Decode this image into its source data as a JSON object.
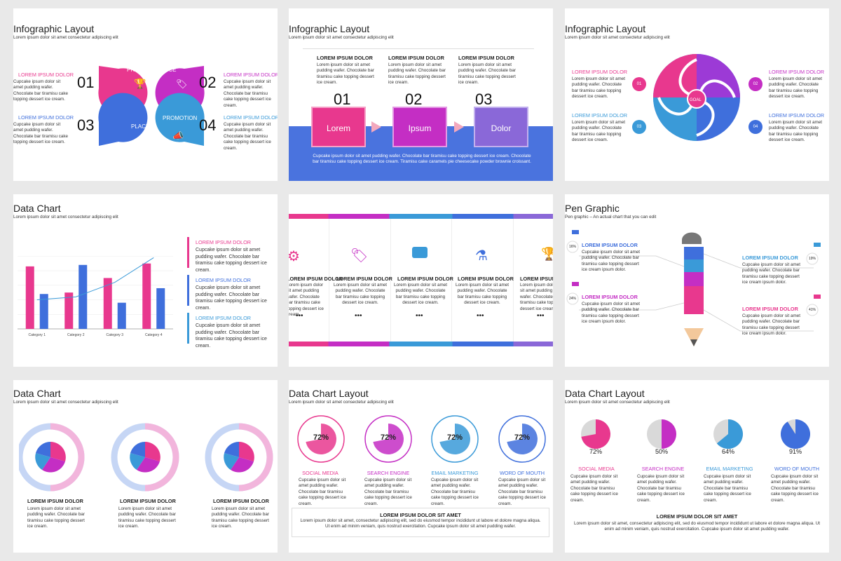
{
  "colors": {
    "pink": "#e8388e",
    "magenta": "#c42ec4",
    "blue": "#3f6fdc",
    "sky": "#3a9ad8",
    "purple": "#7d6bd6"
  },
  "s1": {
    "title": "Infographic Layout",
    "subtitle": "Lorem ipsum dolor sit amet consectetur adipiscing elit",
    "petals": [
      "PRODUCT",
      "PRICE",
      "PLACE",
      "PROMOTION"
    ],
    "numbers": [
      "01",
      "02",
      "03",
      "04"
    ],
    "items": [
      {
        "head": "LOREM IPSUM DOLOR",
        "body": "Cupcake ipsum dolor sit amet pudding wafer. Chocolate bar tiramisu cake topping dessert ice cream."
      },
      {
        "head": "LOREM IPSUM DOLOR",
        "body": "Cupcake ipsum dolor sit amet pudding wafer. Chocolate bar tiramisu cake topping dessert ice cream."
      },
      {
        "head": "LOREM IPSUM DOLOR",
        "body": "Cupcake ipsum dolor sit amet pudding wafer. Chocolate bar tiramisu cake topping dessert ice cream."
      },
      {
        "head": "LOREM IPSUM DOLOR",
        "body": "Cupcake ipsum dolor sit amet pudding wafer. Chocolate bar tiramisu cake topping dessert ice cream."
      }
    ]
  },
  "s2": {
    "title": "Infographic Layout",
    "subtitle": "Lorem ipsum dolor sit amet consectetur adipiscing elit",
    "cols": [
      {
        "head": "LOREM IPSUM DOLOR",
        "body": "Lorem ipsum dolor sit amet pudding wafer. Chocolate bar tiramisu cake topping dessert ice cream.",
        "num": "01",
        "box": "Lorem"
      },
      {
        "head": "LOREM IPSUM DOLOR",
        "body": "Lorem ipsum dolor sit amet pudding wafer. Chocolate bar tiramisu cake topping dessert ice cream.",
        "num": "02",
        "box": "Ipsum"
      },
      {
        "head": "LOREM IPSUM DOLOR",
        "body": "Lorem ipsum dolor sit amet pudding wafer. Chocolate bar tiramisu cake topping dessert ice cream.",
        "num": "03",
        "box": "Dolor"
      }
    ],
    "footer": "Cupcake ipsum dolor sit amet pudding wafer. Chocolate bar tiramisu cake topping dessert ice cream. Chocolate bar tiramisu cake topping dessert ice cream. Tiramisu cake caramels pie cheesecake powder brownie croissant."
  },
  "s3": {
    "title": "Infographic Layout",
    "subtitle": "Lorem ipsum dolor sit amet consectetur adipiscing elit",
    "goal": "GOAL",
    "items": [
      {
        "num": "01",
        "head": "LOREM IPSUM DOLOR",
        "body": "Lorem ipsum dolor sit amet pudding wafer. Chocolate bar tiramisu cake topping dessert ice cream."
      },
      {
        "num": "02",
        "head": "LOREM IPSUM DOLOR",
        "body": "Lorem ipsum dolor sit amet pudding wafer. Chocolate bar tiramisu cake topping dessert ice cream."
      },
      {
        "num": "03",
        "head": "LOREM IPSUM DOLOR",
        "body": "Lorem ipsum dolor sit amet pudding wafer. Chocolate bar tiramisu cake topping dessert ice cream."
      },
      {
        "num": "04",
        "head": "LOREM IPSUM DOLOR",
        "body": "Lorem ipsum dolor sit amet pudding wafer. Chocolate bar tiramisu cake topping dessert ice cream."
      }
    ]
  },
  "s4": {
    "title": "Data Chart",
    "subtitle": "Lorem ipsum dolor sit amet consectetur adipiscing elit",
    "items": [
      {
        "head": "LOREM IPSUM DOLOR",
        "body": "Cupcake ipsum dolor sit amet pudding wafer. Chocolate bar tiramisu cake topping dessert ice cream."
      },
      {
        "head": "LOREM IPSUM DOLOR",
        "body": "Cupcake ipsum dolor sit amet pudding wafer. Chocolate bar tiramisu cake topping dessert ice cream."
      },
      {
        "head": "LOREM IPSUM DOLOR",
        "body": "Cupcake ipsum dolor sit amet pudding wafer. Chocolate bar tiramisu cake topping dessert ice cream."
      }
    ]
  },
  "chart_data": {
    "type": "bar",
    "categories": [
      "Category 1",
      "Category 2",
      "Category 3",
      "Category 4"
    ],
    "series": [
      {
        "values": [
          4.3,
          2.5,
          3.5,
          4.5
        ]
      },
      {
        "values": [
          2.4,
          4.4,
          1.8,
          2.8
        ]
      }
    ],
    "line": [
      2.0,
      2.2,
      3.2,
      4.9
    ],
    "ylim": [
      0,
      5.5
    ]
  },
  "s5": {
    "cols": [
      {
        "icon": "gears-icon",
        "head": "LOREM IPSUM DOLOR",
        "body": "Lorem ipsum dolor sit amet pudding wafer. Chocolate bar tiramisu cake topping dessert ice cream.",
        "dots": "•••"
      },
      {
        "icon": "tag-icon",
        "head": "LOREM IPSUM DOLOR",
        "body": "Lorem ipsum dolor sit amet pudding wafer. Chocolate bar tiramisu cake topping dessert ice cream.",
        "dots": "•••"
      },
      {
        "icon": "briefcase-icon",
        "head": "LOREM IPSUM DOLOR",
        "body": "Lorem ipsum dolor sit amet pudding wafer. Chocolate bar tiramisu cake topping dessert ice cream.",
        "dots": "•••"
      },
      {
        "icon": "flask-icon",
        "head": "LOREM IPSUM DOLOR",
        "body": "Lorem ipsum dolor sit amet pudding wafer. Chocolate bar tiramisu cake topping dessert ice cream.",
        "dots": "•••"
      },
      {
        "icon": "trophy-icon",
        "head": "LOREM IPSUM DOLOR",
        "body": "Lorem ipsum dolor sit amet pudding wafer. Chocolate bar tiramisu cake topping dessert ice cream.",
        "dots": "•••"
      }
    ]
  },
  "s6": {
    "title": "Pen Graphic",
    "subtitle": "Pen graphic – An actual chart that you can edit",
    "items": [
      {
        "pct": "16%",
        "head": "LOREM IPSUM DOLOR",
        "body": "Cupcake ipsum dolor sit amet pudding wafer. Chocolate bar tiramisu cake topping dessert ice cream ipsum dolor."
      },
      {
        "pct": "19%",
        "head": "LOREM IPSUM DOLOR",
        "body": "Cupcake ipsum dolor sit amet pudding wafer. Chocolate bar tiramisu cake topping dessert ice cream ipsum dolor."
      },
      {
        "pct": "24%",
        "head": "LOREM IPSUM DOLOR",
        "body": "Cupcake ipsum dolor sit amet pudding wafer. Chocolate bar tiramisu cake topping dessert ice cream ipsum dolor."
      },
      {
        "pct": "41%",
        "head": "LOREM IPSUM DOLOR",
        "body": "Cupcake ipsum dolor sit amet pudding wafer. Chocolate bar tiramisu cake topping dessert ice cream ipsum dolor."
      }
    ]
  },
  "s7": {
    "title": "Data Chart",
    "subtitle": "Lorem ipsum dolor sit amet consectetur adipiscing elit",
    "items": [
      {
        "head": "LOREM IPSUM DOLOR",
        "body": "Lorem ipsum dolor sit amet pudding wafer. Chocolate bar tiramisu cake topping dessert ice cream."
      },
      {
        "head": "LOREM IPSUM DOLOR",
        "body": "Lorem ipsum dolor sit amet pudding wafer. Chocolate bar tiramisu cake topping dessert ice cream."
      },
      {
        "head": "LOREM IPSUM DOLOR",
        "body": "Lorem ipsum dolor sit amet pudding wafer. Chocolate bar tiramisu cake topping dessert ice cream."
      }
    ]
  },
  "s8": {
    "title": "Data Chart Layout",
    "subtitle": "Lorem ipsum dolor sit amet consectetur adipiscing elit",
    "items": [
      {
        "pct": "72%",
        "value": 72,
        "label": "SOCIAL MEDIA",
        "body": "Cupcake ipsum dolor sit amet pudding wafer. Chocolate bar tiramisu cake topping dessert ice cream."
      },
      {
        "pct": "72%",
        "value": 72,
        "label": "SEARCH ENGINE",
        "body": "Cupcake ipsum dolor sit amet pudding wafer. Chocolate bar tiramisu cake topping dessert ice cream."
      },
      {
        "pct": "72%",
        "value": 72,
        "label": "EMAIL MARKETING",
        "body": "Cupcake ipsum dolor sit amet pudding wafer. Chocolate bar tiramisu cake topping dessert ice cream."
      },
      {
        "pct": "72%",
        "value": 72,
        "label": "WORD OF MOUTH",
        "body": "Cupcake ipsum dolor sit amet pudding wafer. Chocolate bar tiramisu cake topping dessert ice cream."
      }
    ],
    "box_head": "LOREM IPSUM DOLOR SIT AMET",
    "box_body": "Lorem ipsum dolor sit amet, consectetur adipiscing elit, sed do eiusmod tempor incididunt ut labore et dolore magna aliqua. Ut enim ad minim veniam, quis nostrud exercitation. Cupcake ipsum dolor sit amet pudding wafer."
  },
  "s9": {
    "title": "Data Chart Layout",
    "subtitle": "Lorem ipsum dolor sit amet consectetur adipiscing elit",
    "items": [
      {
        "pct": "72%",
        "value": 72,
        "label": "SOCIAL MEDIA",
        "body": "Cupcake ipsum dolor sit amet pudding wafer. Chocolate bar tiramisu cake topping dessert ice cream."
      },
      {
        "pct": "50%",
        "value": 50,
        "label": "SEARCH ENGINE",
        "body": "Cupcake ipsum dolor sit amet pudding wafer. Chocolate bar tiramisu cake topping dessert ice cream."
      },
      {
        "pct": "64%",
        "value": 64,
        "label": "EMAIL MARKETING",
        "body": "Cupcake ipsum dolor sit amet pudding wafer. Chocolate bar tiramisu cake topping dessert ice cream."
      },
      {
        "pct": "91%",
        "value": 91,
        "label": "WORD OF MOUTH",
        "body": "Cupcake ipsum dolor sit amet pudding wafer. Chocolate bar tiramisu cake topping dessert ice cream."
      }
    ],
    "box_head": "LOREM IPSUM DOLOR SIT AMET",
    "box_body": "Lorem ipsum dolor sit amet, consectetur adipiscing elit, sed do eiusmod tempor incididunt ut labore et dolore magna aliqua. Ut enim ad minim veniam, quis nostrud exercitation. Cupcake ipsum dolor sit amet pudding wafer."
  }
}
